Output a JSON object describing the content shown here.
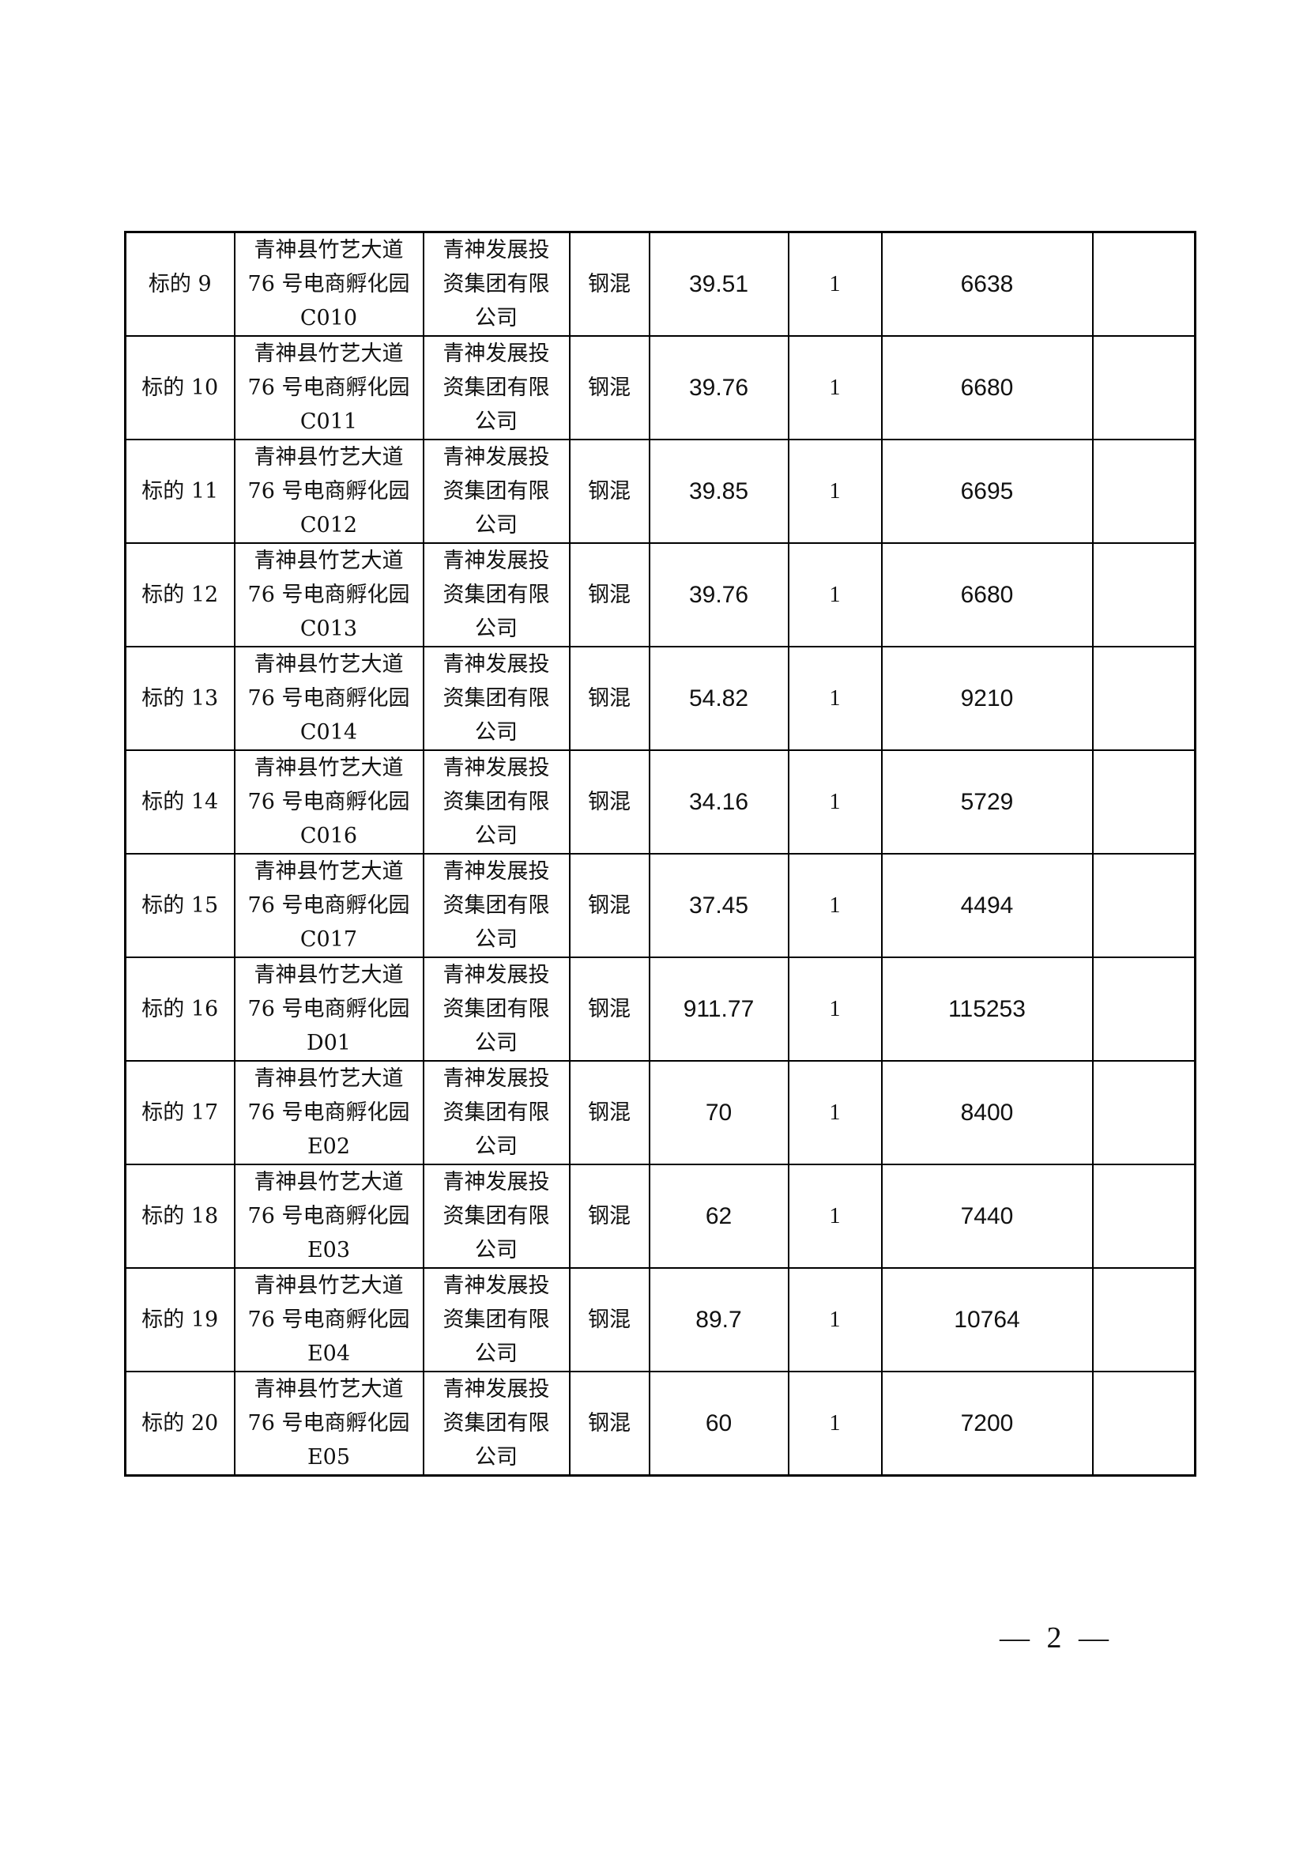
{
  "rows": [
    {
      "id": "标的 9",
      "address": [
        "青神县竹艺大道",
        "76 号电商孵化园",
        "C010"
      ],
      "owner": [
        "青神发展投",
        "资集团有限",
        "公司"
      ],
      "structure": "钢混",
      "area": "39.51",
      "qty": "1",
      "price": "6638",
      "note": ""
    },
    {
      "id": "标的 10",
      "address": [
        "青神县竹艺大道",
        "76 号电商孵化园",
        "C011"
      ],
      "owner": [
        "青神发展投",
        "资集团有限",
        "公司"
      ],
      "structure": "钢混",
      "area": "39.76",
      "qty": "1",
      "price": "6680",
      "note": ""
    },
    {
      "id": "标的 11",
      "address": [
        "青神县竹艺大道",
        "76 号电商孵化园",
        "C012"
      ],
      "owner": [
        "青神发展投",
        "资集团有限",
        "公司"
      ],
      "structure": "钢混",
      "area": "39.85",
      "qty": "1",
      "price": "6695",
      "note": ""
    },
    {
      "id": "标的 12",
      "address": [
        "青神县竹艺大道",
        "76 号电商孵化园",
        "C013"
      ],
      "owner": [
        "青神发展投",
        "资集团有限",
        "公司"
      ],
      "structure": "钢混",
      "area": "39.76",
      "qty": "1",
      "price": "6680",
      "note": ""
    },
    {
      "id": "标的 13",
      "address": [
        "青神县竹艺大道",
        "76 号电商孵化园",
        "C014"
      ],
      "owner": [
        "青神发展投",
        "资集团有限",
        "公司"
      ],
      "structure": "钢混",
      "area": "54.82",
      "qty": "1",
      "price": "9210",
      "note": ""
    },
    {
      "id": "标的 14",
      "address": [
        "青神县竹艺大道",
        "76 号电商孵化园",
        "C016"
      ],
      "owner": [
        "青神发展投",
        "资集团有限",
        "公司"
      ],
      "structure": "钢混",
      "area": "34.16",
      "qty": "1",
      "price": "5729",
      "note": ""
    },
    {
      "id": "标的 15",
      "address": [
        "青神县竹艺大道",
        "76 号电商孵化园",
        "C017"
      ],
      "owner": [
        "青神发展投",
        "资集团有限",
        "公司"
      ],
      "structure": "钢混",
      "area": "37.45",
      "qty": "1",
      "price": "4494",
      "note": ""
    },
    {
      "id": "标的 16",
      "address": [
        "青神县竹艺大道",
        "76 号电商孵化园",
        "D01"
      ],
      "owner": [
        "青神发展投",
        "资集团有限",
        "公司"
      ],
      "structure": "钢混",
      "area": "911.77",
      "qty": "1",
      "price": "115253",
      "note": ""
    },
    {
      "id": "标的 17",
      "address": [
        "青神县竹艺大道",
        "76 号电商孵化园",
        "E02"
      ],
      "owner": [
        "青神发展投",
        "资集团有限",
        "公司"
      ],
      "structure": "钢混",
      "area": "70",
      "qty": "1",
      "price": "8400",
      "note": ""
    },
    {
      "id": "标的 18",
      "address": [
        "青神县竹艺大道",
        "76 号电商孵化园",
        "E03"
      ],
      "owner": [
        "青神发展投",
        "资集团有限",
        "公司"
      ],
      "structure": "钢混",
      "area": "62",
      "qty": "1",
      "price": "7440",
      "note": ""
    },
    {
      "id": "标的 19",
      "address": [
        "青神县竹艺大道",
        "76 号电商孵化园",
        "E04"
      ],
      "owner": [
        "青神发展投",
        "资集团有限",
        "公司"
      ],
      "structure": "钢混",
      "area": "89.7",
      "qty": "1",
      "price": "10764",
      "note": ""
    },
    {
      "id": "标的 20",
      "address": [
        "青神县竹艺大道",
        "76 号电商孵化园",
        "E05"
      ],
      "owner": [
        "青神发展投",
        "资集团有限",
        "公司"
      ],
      "structure": "钢混",
      "area": "60",
      "qty": "1",
      "price": "7200",
      "note": ""
    }
  ],
  "page_number": "— 2 —"
}
